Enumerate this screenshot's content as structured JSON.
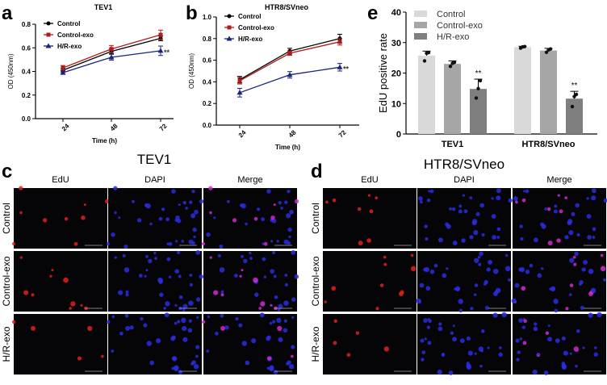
{
  "panel_letters": {
    "a": "a",
    "b": "b",
    "c": "c",
    "d": "d",
    "e": "e"
  },
  "chart_data": [
    {
      "id": "a",
      "type": "line",
      "title": "TEV1",
      "xlabel": "Time (h)",
      "ylabel": "OD (450nm)",
      "categories": [
        "24",
        "48",
        "72"
      ],
      "ylim": [
        0,
        0.8
      ],
      "yticks": [
        "0.0",
        "0.2",
        "0.4",
        "0.6",
        "0.8"
      ],
      "legend": "top-left",
      "series": [
        {
          "name": "Control",
          "color": "#000000",
          "marker": "circle",
          "values": [
            0.41,
            0.57,
            0.68
          ],
          "errors": [
            0.015,
            0.02,
            0.02
          ]
        },
        {
          "name": "Control-exo",
          "color": "#b01c1c",
          "marker": "square",
          "values": [
            0.43,
            0.59,
            0.71
          ],
          "errors": [
            0.02,
            0.03,
            0.04
          ]
        },
        {
          "name": "H/R-exo",
          "color": "#1a237e",
          "marker": "triangle",
          "values": [
            0.39,
            0.52,
            0.575
          ],
          "errors": [
            0.015,
            0.025,
            0.04
          ]
        }
      ],
      "annotation": "**"
    },
    {
      "id": "b",
      "type": "line",
      "title": "HTR8/SVneo",
      "xlabel": "Time (h)",
      "ylabel": "OD (450nm)",
      "categories": [
        "24",
        "48",
        "72"
      ],
      "ylim": [
        0,
        1.0
      ],
      "yticks": [
        "0.0",
        "0.2",
        "0.4",
        "0.6",
        "0.8",
        "1.0"
      ],
      "legend": "top-left",
      "series": [
        {
          "name": "Control",
          "color": "#000000",
          "marker": "circle",
          "values": [
            0.42,
            0.685,
            0.8
          ],
          "errors": [
            0.03,
            0.025,
            0.04
          ]
        },
        {
          "name": "Control-exo",
          "color": "#b01c1c",
          "marker": "square",
          "values": [
            0.41,
            0.665,
            0.77
          ],
          "errors": [
            0.03,
            0.02,
            0.03
          ]
        },
        {
          "name": "H/R-exo",
          "color": "#1a237e",
          "marker": "triangle",
          "values": [
            0.3,
            0.465,
            0.535
          ],
          "errors": [
            0.04,
            0.03,
            0.035
          ]
        }
      ],
      "annotation": "**"
    },
    {
      "id": "e",
      "type": "bar",
      "title": "",
      "xlabel": "",
      "ylabel": "EdU positive rate",
      "categories": [
        "TEV1",
        "HTR8/SVneo"
      ],
      "ylim": [
        0,
        40
      ],
      "yticks": [
        "0",
        "10",
        "20",
        "30",
        "40"
      ],
      "legend": "top-left",
      "series": [
        {
          "name": "Control",
          "color": "#d9d9d9",
          "values": [
            25.7,
            28.5
          ],
          "errors": [
            1.5,
            0.3
          ],
          "points": [
            [
              24,
              26.5,
              26.7
            ],
            [
              28.2,
              28.6,
              28.7
            ]
          ]
        },
        {
          "name": "Control-exo",
          "color": "#a6a6a6",
          "values": [
            23,
            27.4
          ],
          "errors": [
            1,
            0.7
          ],
          "points": [
            [
              22.2,
              23.2,
              23.5
            ],
            [
              26.8,
              27.6,
              27.9
            ]
          ]
        },
        {
          "name": "H/R-exo",
          "color": "#7f7f7f",
          "values": [
            14.8,
            11.6
          ],
          "errors": [
            3.2,
            2.4
          ],
          "points": [
            [
              11.8,
              14.9,
              17.5
            ],
            [
              9,
              12.3,
              13
            ]
          ]
        }
      ],
      "annotations": [
        "**",
        "**"
      ]
    }
  ],
  "micrographs": {
    "c": {
      "title": "TEV1",
      "columns": [
        "EdU",
        "DAPI",
        "Merge"
      ],
      "rows": [
        "Control",
        "Control-exo",
        "H/R-exo"
      ]
    },
    "d": {
      "title": "HTR8/SVneo",
      "columns": [
        "EdU",
        "DAPI",
        "Merge"
      ],
      "rows": [
        "Control",
        "Control-exo",
        "H/R-exo"
      ]
    }
  }
}
